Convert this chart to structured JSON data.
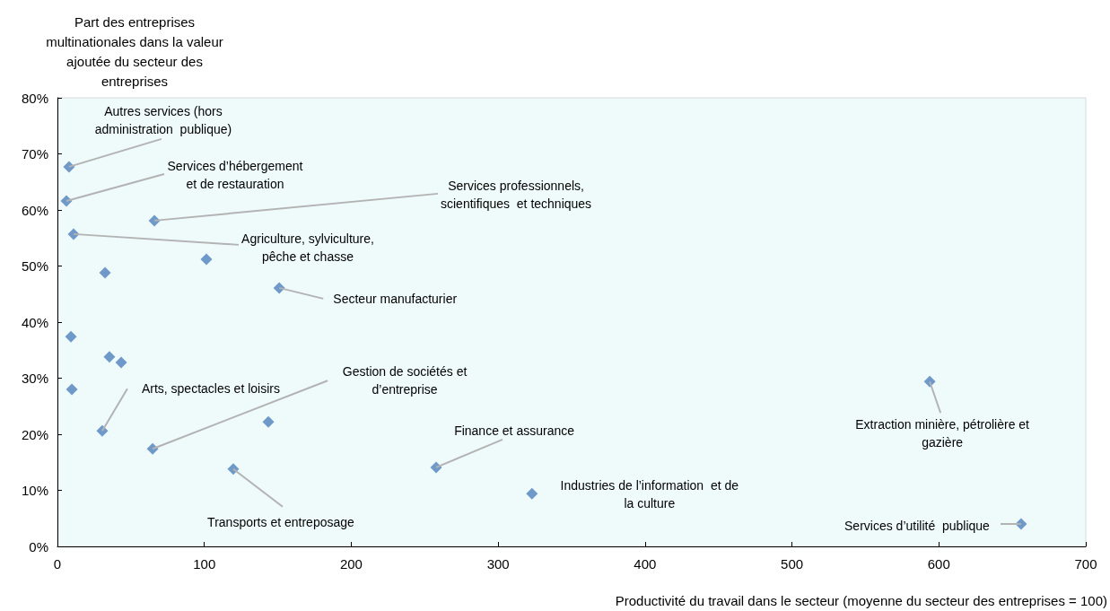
{
  "chart_data": {
    "type": "scatter",
    "ylabel": "Part des entreprises\nmultinationales dans la valeur\najoutée du secteur des\nentreprises",
    "xlabel": "Productivité du travail dans le secteur (moyenne du secteur des entreprises = 100)",
    "x": [
      7.9,
      6.1,
      66,
      11,
      101.4,
      32.4,
      151,
      9.2,
      35.4,
      43.4,
      9.8,
      30.5,
      64.8,
      143.6,
      119.7,
      257.8,
      323,
      593.8,
      656
    ],
    "series": [
      {
        "color": "#4f81bd",
        "values": [
          67.7,
          61.6,
          58.1,
          55.7,
          51.2,
          48.8,
          46.1,
          37.4,
          33.8,
          32.8,
          28,
          20.6,
          17.4,
          22.2,
          13.8,
          14.1,
          9.4,
          29.4,
          4.0
        ]
      }
    ],
    "marker": "diamond",
    "grid": false,
    "xlim": [
      0,
      700
    ],
    "xticks": [
      0,
      100,
      200,
      300,
      400,
      500,
      600,
      700
    ],
    "ylim": [
      0,
      80
    ],
    "yticks": [
      {
        "value": 0,
        "label": "0%"
      },
      {
        "value": 10,
        "label": "10%"
      },
      {
        "value": 20,
        "label": "20%"
      },
      {
        "value": 30,
        "label": "30%"
      },
      {
        "value": 40,
        "label": "40%"
      },
      {
        "value": 50,
        "label": "50%"
      },
      {
        "value": 60,
        "label": "60%"
      },
      {
        "value": 70,
        "label": "70%"
      },
      {
        "value": 80,
        "label": "80%"
      }
    ],
    "annotations": [
      {
        "text": "Autres services (hors\nadministration  publique)",
        "x": 7.9,
        "y": 67.7
      },
      {
        "text": "Services d’hébergement\net de restauration",
        "x": 6.1,
        "y": 61.6
      },
      {
        "text": "Services professionnels,\nscientifiques  et techniques",
        "x": 66,
        "y": 58.1
      },
      {
        "text": "Agriculture, sylviculture,\npêche et chasse",
        "x": 11,
        "y": 55.7
      },
      {
        "text": "Secteur manufacturier",
        "x": 151,
        "y": 46.1
      },
      {
        "text": "Arts, spectacles et loisirs",
        "x": 30.5,
        "y": 20.6
      },
      {
        "text": "Gestion de sociétés et\nd’entreprise",
        "x": 64.8,
        "y": 17.4
      },
      {
        "text": "Transports et entreposage",
        "x": 119.7,
        "y": 13.8
      },
      {
        "text": "Finance et assurance",
        "x": 257.8,
        "y": 14.1
      },
      {
        "text": "Industries de l’information  et de\nla culture",
        "x": 323,
        "y": 9.4
      },
      {
        "text": "Extraction minière, pétrolière et\ngazière",
        "x": 593.8,
        "y": 29.4
      },
      {
        "text": "Services d’utilité  publique",
        "x": 656,
        "y": 4.0
      }
    ]
  }
}
